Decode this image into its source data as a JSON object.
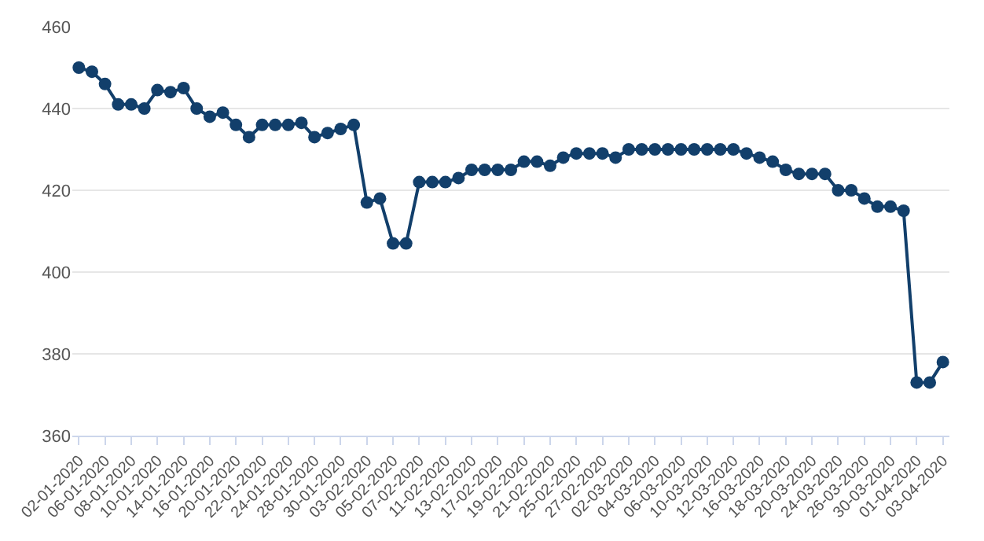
{
  "chart_data": {
    "type": "line",
    "categories": [
      "02-01-2020",
      null,
      "06-01-2020",
      null,
      "08-01-2020",
      null,
      "10-01-2020",
      null,
      "14-01-2020",
      null,
      "16-01-2020",
      null,
      "20-01-2020",
      null,
      "22-01-2020",
      null,
      "24-01-2020",
      null,
      "28-01-2020",
      null,
      "30-01-2020",
      null,
      "03-02-2020",
      null,
      "05-02-2020",
      null,
      "07-02-2020",
      null,
      "11-02-2020",
      null,
      "13-02-2020",
      null,
      "17-02-2020",
      null,
      "19-02-2020",
      null,
      "21-02-2020",
      null,
      "25-02-2020",
      null,
      "27-02-2020",
      null,
      "02-03-2020",
      null,
      "04-03-2020",
      null,
      "06-03-2020",
      null,
      "10-03-2020",
      null,
      "12-03-2020",
      null,
      "16-03-2020",
      null,
      "18-03-2020",
      null,
      "20-03-2020",
      null,
      "24-03-2020",
      null,
      "26-03-2020",
      null,
      "30-03-2020",
      null,
      "01-04-2020",
      null,
      "03-04-2020"
    ],
    "series": [
      {
        "color": "#123f6b",
        "values": [
          450,
          449,
          446,
          441,
          441,
          440,
          444.5,
          444,
          445,
          440,
          438,
          439,
          436,
          433,
          436,
          436,
          436,
          436.5,
          433,
          434,
          435,
          436,
          417,
          418,
          407,
          407,
          422,
          422,
          422,
          423,
          425,
          425,
          425,
          425,
          427,
          427,
          426,
          428,
          429,
          429,
          429,
          428,
          430,
          430,
          430,
          430,
          430,
          430,
          430,
          430,
          430,
          429,
          428,
          427,
          425,
          424,
          424,
          424,
          420,
          420,
          418,
          416,
          416,
          415,
          373,
          373,
          378
        ]
      }
    ],
    "ylim": [
      360,
      460
    ],
    "yticks": [
      360,
      380,
      400,
      420,
      440,
      460
    ],
    "grid": "y",
    "marker": "circle",
    "line_style": "solid"
  }
}
